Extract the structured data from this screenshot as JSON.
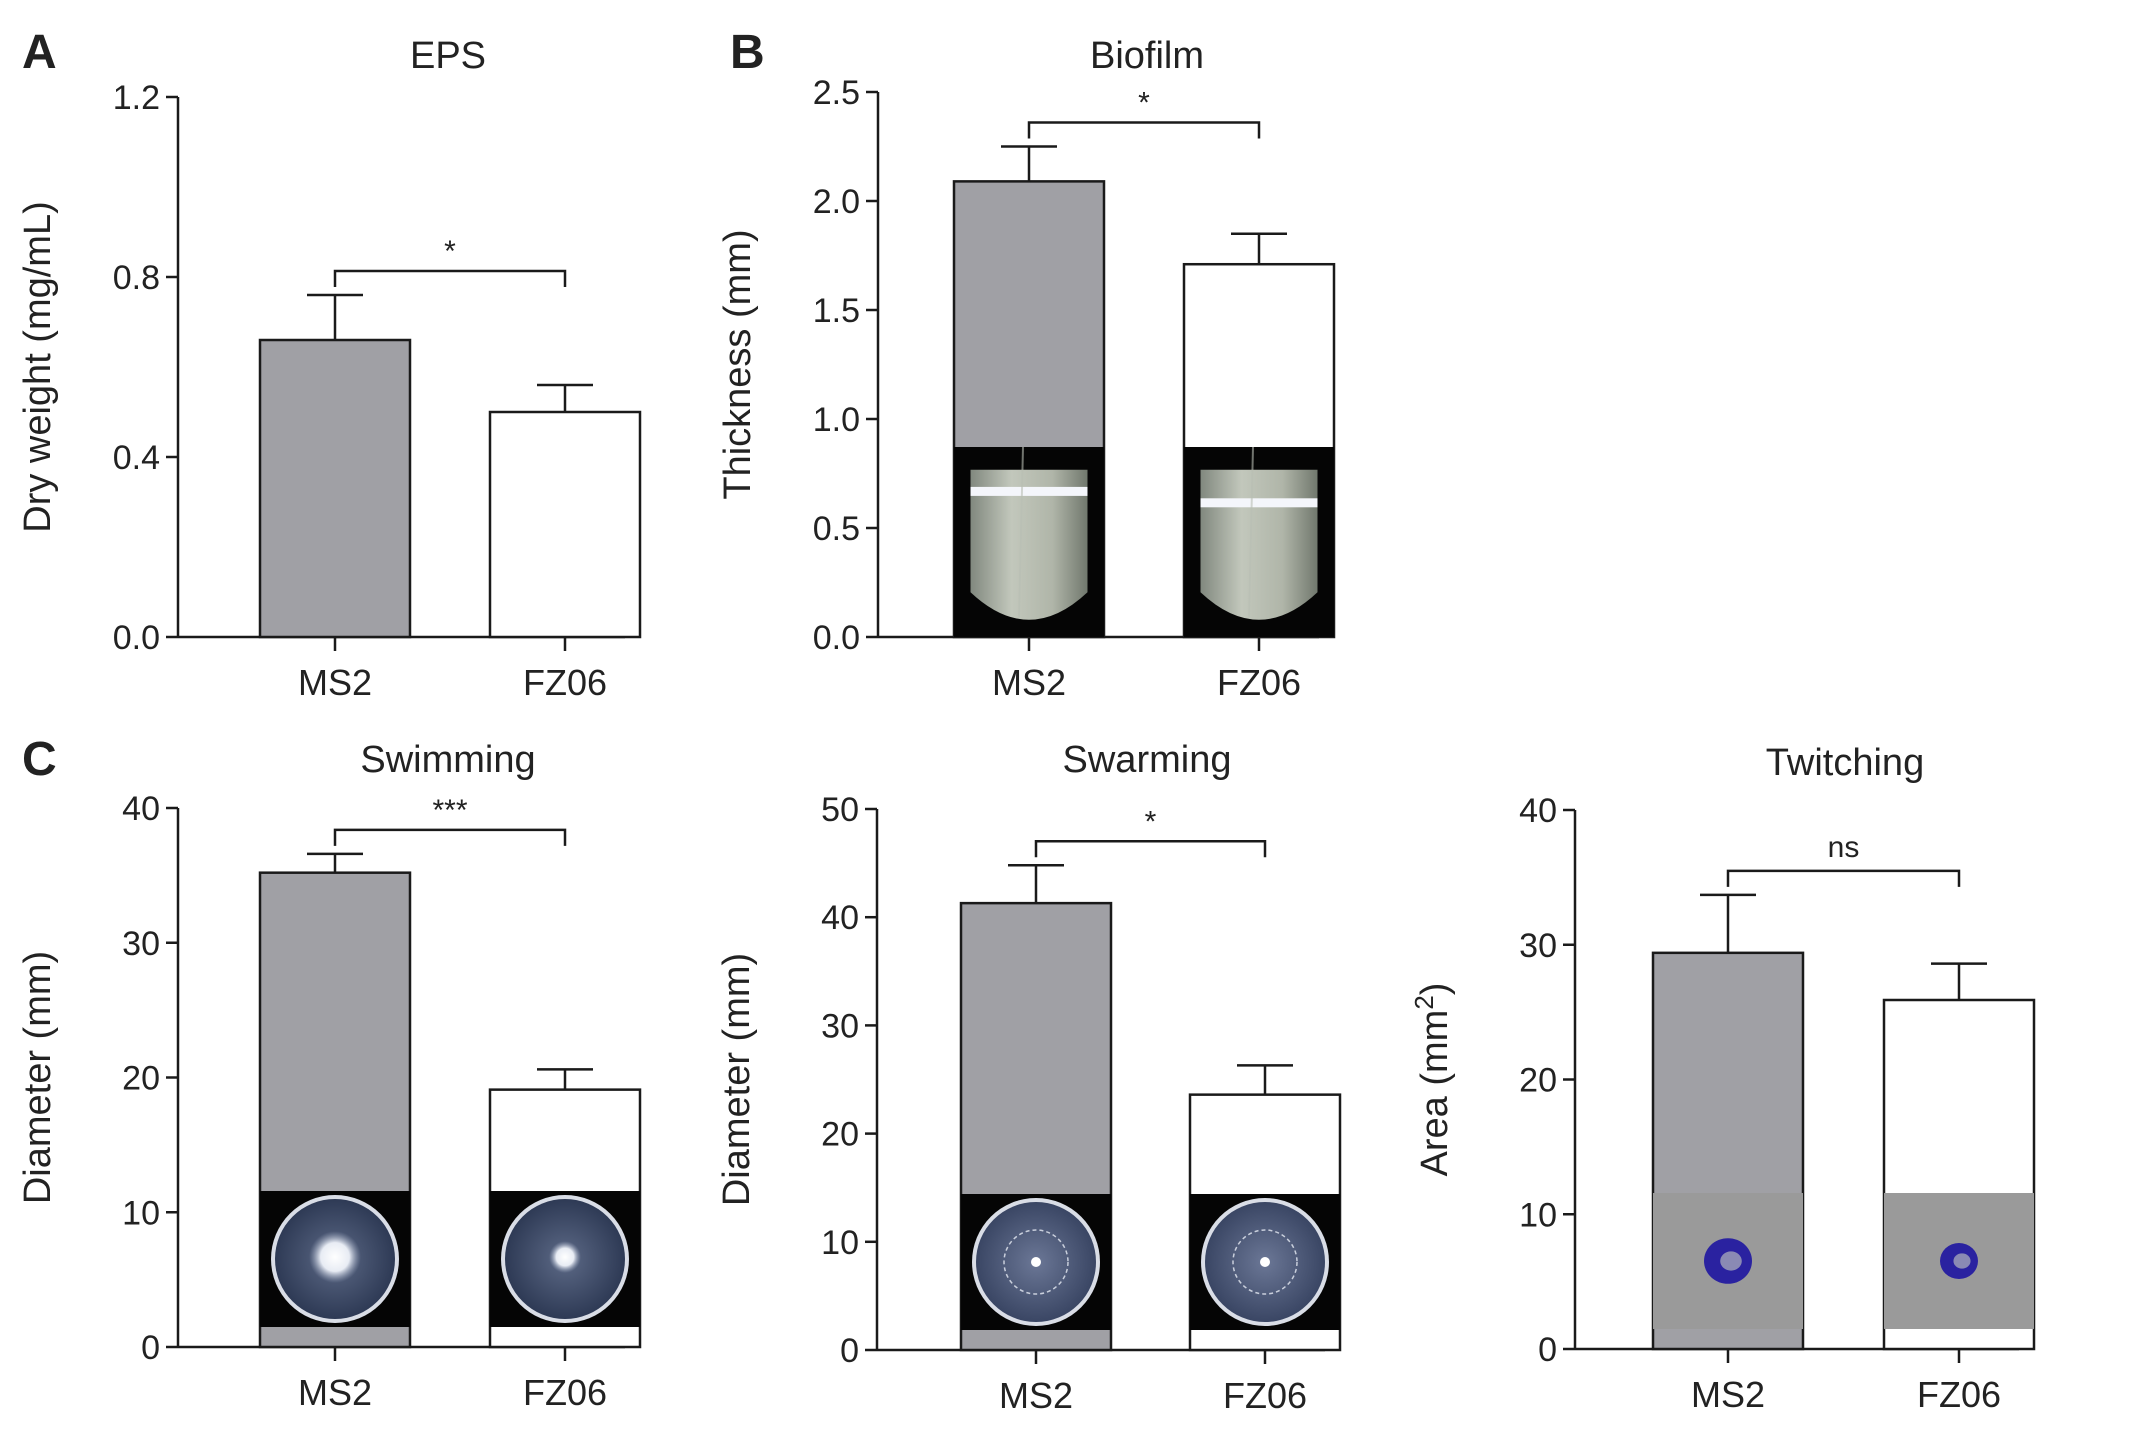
{
  "figure": {
    "panel_letters": {
      "A": "A",
      "B": "B",
      "C": "C"
    },
    "colors": {
      "ms2_bar": "#a0a0a5",
      "fz06_bar": "#ffffff",
      "stroke": "#1a1a1a"
    }
  },
  "chart_data": [
    {
      "id": "eps",
      "type": "bar",
      "title": "EPS",
      "xlabel": "",
      "ylabel": "Dry weight (mg/mL)",
      "ylim": [
        0,
        1.2
      ],
      "yticks": [
        "0.0",
        "0.4",
        "0.8",
        "1.2"
      ],
      "categories": [
        "MS2",
        "FZ06"
      ],
      "values": [
        0.66,
        0.5
      ],
      "errors": [
        0.1,
        0.06
      ],
      "significance": "*",
      "inset": "none"
    },
    {
      "id": "biofilm",
      "type": "bar",
      "title": "Biofilm",
      "xlabel": "",
      "ylabel": "Thickness (mm)",
      "ylim": [
        0,
        2.5
      ],
      "yticks": [
        "0.0",
        "0.5",
        "1.0",
        "1.5",
        "2.0",
        "2.5"
      ],
      "categories": [
        "MS2",
        "FZ06"
      ],
      "values": [
        2.09,
        1.71
      ],
      "errors": [
        0.16,
        0.14
      ],
      "significance": "*",
      "inset": "tube-photo"
    },
    {
      "id": "swimming",
      "type": "bar",
      "title": "Swimming",
      "xlabel": "",
      "ylabel": "Diameter (mm)",
      "ylim": [
        0,
        40
      ],
      "yticks": [
        "0",
        "10",
        "20",
        "30",
        "40"
      ],
      "categories": [
        "MS2",
        "FZ06"
      ],
      "values": [
        35.2,
        19.1
      ],
      "errors": [
        1.4,
        1.5
      ],
      "significance": "***",
      "inset": "plate-photo"
    },
    {
      "id": "swarming",
      "type": "bar",
      "title": "Swarming",
      "xlabel": "",
      "ylabel": "Diameter (mm)",
      "ylim": [
        0,
        50
      ],
      "yticks": [
        "0",
        "10",
        "20",
        "30",
        "40",
        "50"
      ],
      "categories": [
        "MS2",
        "FZ06"
      ],
      "values": [
        41.3,
        23.6
      ],
      "errors": [
        3.5,
        2.7
      ],
      "significance": "*",
      "inset": "plate-photo-rings"
    },
    {
      "id": "twitching",
      "type": "bar",
      "title": "Twitching",
      "xlabel": "",
      "ylabel": "Area (mm2)",
      "ylim": [
        0,
        40
      ],
      "yticks": [
        "0",
        "10",
        "20",
        "30",
        "40"
      ],
      "categories": [
        "MS2",
        "FZ06"
      ],
      "values": [
        29.4,
        25.9
      ],
      "errors": [
        4.3,
        2.7
      ],
      "significance": "ns",
      "inset": "stain-photo"
    }
  ]
}
